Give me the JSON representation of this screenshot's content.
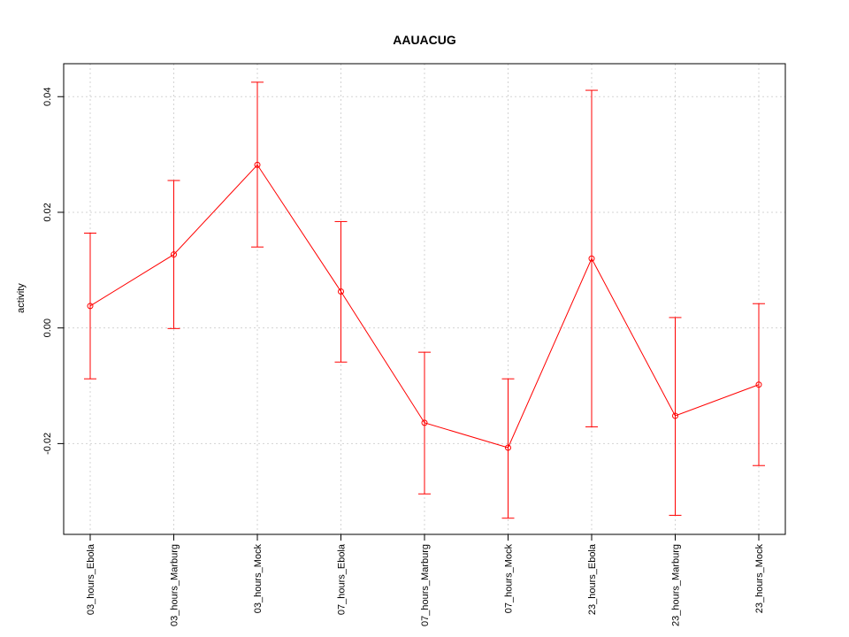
{
  "chart_data": {
    "type": "line",
    "title": "AAUACUG",
    "xlabel": "",
    "ylabel": "activity",
    "categories": [
      "03_hours_Ebola",
      "03_hours_Marburg",
      "03_hours_Mock",
      "07_hours_Ebola",
      "07_hours_Marburg",
      "07_hours_Mock",
      "23_hours_Ebola",
      "23_hours_Marburg",
      "23_hours_Mock"
    ],
    "values": [
      0.0038,
      0.0127,
      0.0282,
      0.0063,
      -0.0164,
      -0.0207,
      0.012,
      -0.0152,
      -0.0098
    ],
    "lower": [
      -0.0088,
      -0.0001,
      0.014,
      -0.0059,
      -0.0287,
      -0.0329,
      -0.0171,
      -0.0324,
      -0.0238
    ],
    "upper": [
      0.0164,
      0.0255,
      0.0425,
      0.0184,
      -0.0042,
      -0.0088,
      0.0411,
      0.0018,
      0.0042
    ],
    "yticks": [
      -0.02,
      0.0,
      0.02,
      0.04
    ],
    "ytick_labels": [
      "-0.02",
      "0.00",
      "0.02",
      "0.04"
    ],
    "ylim": [
      -0.0357,
      0.0457
    ],
    "grid": true,
    "color": "#ff0000"
  }
}
